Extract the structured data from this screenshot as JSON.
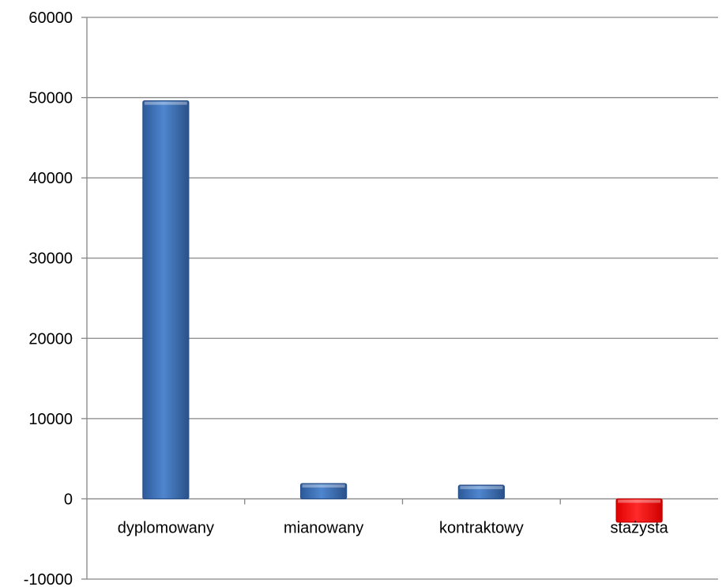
{
  "chart_data": {
    "type": "bar",
    "categories": [
      "dyplomowany",
      "mianowany",
      "kontraktowy",
      "stażysta"
    ],
    "values": [
      49600,
      1900,
      1700,
      -2900
    ],
    "ylim": [
      -10000,
      60000
    ],
    "yticks": [
      60000,
      50000,
      40000,
      30000,
      20000,
      10000,
      0,
      -10000
    ],
    "ytick_labels": [
      "60000",
      "50000",
      "40000",
      "30000",
      "20000",
      "10000",
      "0",
      "-10000"
    ],
    "grid": true,
    "legend": "none",
    "colors": {
      "positive": "#3f72b8",
      "positive_dark": "#2a5189",
      "negative": "#ff0000",
      "negative_dark": "#c00000",
      "grid": "#868686",
      "axis": "#868686"
    }
  }
}
